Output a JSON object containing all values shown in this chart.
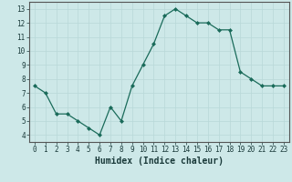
{
  "x": [
    0,
    1,
    2,
    3,
    4,
    5,
    6,
    7,
    8,
    9,
    10,
    11,
    12,
    13,
    14,
    15,
    16,
    17,
    18,
    19,
    20,
    21,
    22,
    23
  ],
  "y": [
    7.5,
    7.0,
    5.5,
    5.5,
    5.0,
    4.5,
    4.0,
    6.0,
    5.0,
    7.5,
    9.0,
    10.5,
    12.5,
    13.0,
    12.5,
    12.0,
    12.0,
    11.5,
    11.5,
    8.5,
    8.0,
    7.5,
    7.5,
    7.5
  ],
  "xlabel": "Humidex (Indice chaleur)",
  "xlim": [
    -0.5,
    23.5
  ],
  "ylim": [
    3.5,
    13.5
  ],
  "yticks": [
    4,
    5,
    6,
    7,
    8,
    9,
    10,
    11,
    12,
    13
  ],
  "xticks": [
    0,
    1,
    2,
    3,
    4,
    5,
    6,
    7,
    8,
    9,
    10,
    11,
    12,
    13,
    14,
    15,
    16,
    17,
    18,
    19,
    20,
    21,
    22,
    23
  ],
  "line_color": "#1a6b5a",
  "marker_color": "#1a6b5a",
  "bg_color": "#cde8e8",
  "grid_color": "#b8d8d8",
  "spine_color": "#555555",
  "tick_label_fontsize": 5.5,
  "xlabel_fontsize": 7
}
